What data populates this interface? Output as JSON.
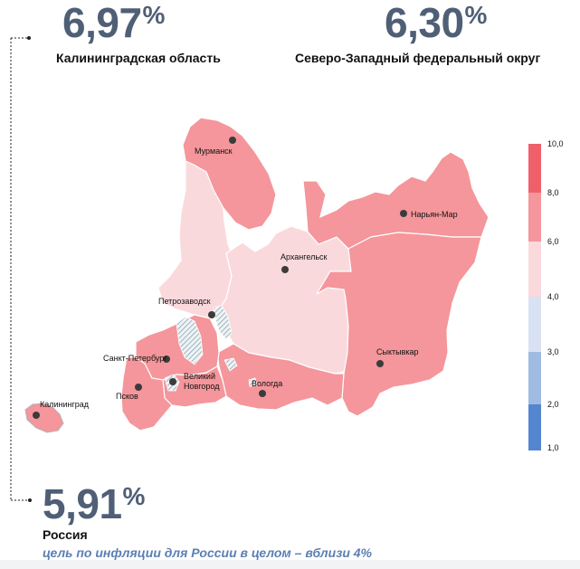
{
  "stats": {
    "kaliningrad": {
      "value": "6,97",
      "unit": "%",
      "label": "Калининградская область"
    },
    "nwfd": {
      "value": "6,30",
      "unit": "%",
      "label": "Северо-Западный федеральный округ"
    },
    "russia": {
      "value": "5,91",
      "unit": "%",
      "label": "Россия"
    }
  },
  "note": "цель по инфляции для России в целом – вблизи 4%",
  "cities": {
    "murmansk": "Мурманск",
    "naryan_mar": "Нарьян-Мар",
    "arkhangelsk": "Архангельск",
    "petrozavodsk": "Петрозаводск",
    "spb": "Санкт-Петербург",
    "novgorod_1": "Великий",
    "novgorod_2": "Новгород",
    "pskov": "Псков",
    "vologda": "Вологда",
    "syktyvkar": "Сыктывкар",
    "kaliningrad": "Калининград"
  },
  "legend": {
    "ticks": [
      "10,0",
      "8,0",
      "6,0",
      "4,0",
      "3,0",
      "2,0",
      "1,0"
    ],
    "colors": [
      "#f0606b",
      "#f4969b",
      "#fad9dc",
      "#d9e2f3",
      "#9fbbe2",
      "#5486cf"
    ]
  },
  "region_colors": {
    "high": "#f4969b",
    "low": "#fad9dc",
    "water": "#b7c4cc"
  }
}
